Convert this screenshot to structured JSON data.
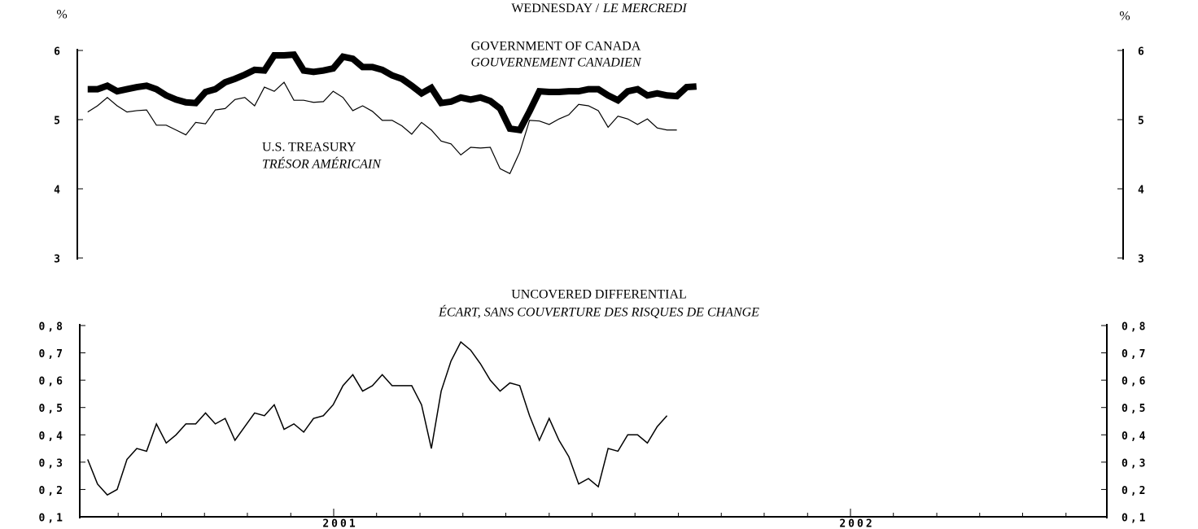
{
  "chart_data": [
    {
      "type": "line",
      "title": "WEDNESDAY /",
      "title_italic": "LE MERCREDI",
      "y_unit": "%",
      "x": [
        2000.524,
        2000.543,
        2000.562,
        2000.581,
        2000.6,
        2000.619,
        2000.638,
        2000.657,
        2000.676,
        2000.695,
        2000.714,
        2000.733,
        2000.752,
        2000.771,
        2000.79,
        2000.809,
        2000.828,
        2000.847,
        2000.866,
        2000.885,
        2000.904,
        2000.923,
        2000.942,
        2000.961,
        2000.98,
        2000.999,
        2001.018,
        2001.037,
        2001.056,
        2001.075,
        2001.094,
        2001.113,
        2001.132,
        2001.151,
        2001.17,
        2001.189,
        2001.208,
        2001.227,
        2001.246,
        2001.265,
        2001.284,
        2001.303,
        2001.322,
        2001.341,
        2001.36,
        2001.379,
        2001.398,
        2001.417,
        2001.436,
        2001.455,
        2001.474,
        2001.493,
        2001.512,
        2001.531,
        2001.55,
        2001.569,
        2001.588,
        2001.607,
        2001.626,
        2001.645,
        2001.664,
        2001.683,
        2001.702
      ],
      "xlim": [
        2000.5,
        2002.5
      ],
      "ylim": [
        3,
        6
      ],
      "yticks": [
        3,
        4,
        5,
        6
      ],
      "series": [
        {
          "name": "GOVERNMENT OF CANADA",
          "name_fr": "GOUVERNEMENT CANADIEN",
          "color": "#000000",
          "values": [
            5.44,
            5.44,
            5.49,
            5.41,
            5.44,
            5.47,
            5.49,
            5.44,
            5.35,
            5.29,
            5.25,
            5.24,
            5.4,
            5.44,
            5.54,
            5.59,
            5.65,
            5.72,
            5.71,
            5.93,
            5.93,
            5.94,
            5.71,
            5.69,
            5.71,
            5.74,
            5.91,
            5.88,
            5.76,
            5.76,
            5.72,
            5.64,
            5.59,
            5.49,
            5.38,
            5.46,
            5.24,
            5.26,
            5.32,
            5.29,
            5.32,
            5.27,
            5.16,
            4.87,
            4.85,
            5.12,
            5.41,
            5.4,
            5.4,
            5.41,
            5.41,
            5.44,
            5.44,
            5.35,
            5.28,
            5.41,
            5.44,
            5.35,
            5.38,
            5.35,
            5.34,
            5.47,
            5.48
          ]
        },
        {
          "name": "U.S. TREASURY",
          "name_fr": "TRÉSOR AMÉRICAIN",
          "color": "#000000",
          "values": [
            5.11,
            5.2,
            5.32,
            5.2,
            5.11,
            5.13,
            5.14,
            4.92,
            4.92,
            4.85,
            4.78,
            4.96,
            4.94,
            5.14,
            5.16,
            5.29,
            5.32,
            5.2,
            5.47,
            5.41,
            5.54,
            5.28,
            5.28,
            5.25,
            5.26,
            5.41,
            5.32,
            5.13,
            5.2,
            5.12,
            4.99,
            4.99,
            4.91,
            4.79,
            4.96,
            4.85,
            4.69,
            4.65,
            4.49,
            4.6,
            4.59,
            4.6,
            4.29,
            4.22,
            4.53,
            4.99,
            4.98,
            4.93,
            5.01,
            5.07,
            5.22,
            5.2,
            5.13,
            4.89,
            5.05,
            5.01,
            4.93,
            5.01,
            4.88,
            4.85,
            4.85,
            null,
            null
          ]
        }
      ]
    },
    {
      "type": "line",
      "title": "UNCOVERED DIFFERENTIAL",
      "subtitle": "ÉCART, SANS COUVERTURE DES RISQUES DE CHANGE",
      "x": [
        2000.524,
        2000.543,
        2000.562,
        2000.581,
        2000.6,
        2000.619,
        2000.638,
        2000.657,
        2000.676,
        2000.695,
        2000.714,
        2000.733,
        2000.752,
        2000.771,
        2000.79,
        2000.809,
        2000.828,
        2000.847,
        2000.866,
        2000.885,
        2000.904,
        2000.923,
        2000.942,
        2000.961,
        2000.98,
        2000.999,
        2001.018,
        2001.037,
        2001.056,
        2001.075,
        2001.094,
        2001.113,
        2001.132,
        2001.151,
        2001.17,
        2001.189,
        2001.208,
        2001.227,
        2001.246,
        2001.265,
        2001.284,
        2001.303,
        2001.322,
        2001.341,
        2001.36,
        2001.379,
        2001.398,
        2001.417,
        2001.436,
        2001.455,
        2001.474,
        2001.493,
        2001.512,
        2001.531,
        2001.55,
        2001.569,
        2001.588,
        2001.607,
        2001.626,
        2001.645
      ],
      "xlim": [
        2000.5,
        2002.5
      ],
      "xticks": [
        2001,
        2002
      ],
      "xminor_ticks": [
        2000.583,
        2000.667,
        2000.75,
        2000.833,
        2000.917,
        2001.083,
        2001.167,
        2001.25,
        2001.333,
        2001.417,
        2001.5,
        2001.583,
        2001.667,
        2001.75,
        2001.833,
        2001.917,
        2002.083,
        2002.167,
        2002.25,
        2002.333,
        2002.417
      ],
      "ylim": [
        0.1,
        0.8
      ],
      "yticks": [
        {
          "value": 0.1,
          "label": "0,1"
        },
        {
          "value": 0.2,
          "label": "0,2"
        },
        {
          "value": 0.3,
          "label": "0,3"
        },
        {
          "value": 0.4,
          "label": "0,4"
        },
        {
          "value": 0.5,
          "label": "0,5"
        },
        {
          "value": 0.6,
          "label": "0,6"
        },
        {
          "value": 0.7,
          "label": "0,7"
        },
        {
          "value": 0.8,
          "label": "0,8"
        }
      ],
      "series": [
        {
          "color": "#000000",
          "values": [
            0.31,
            0.22,
            0.18,
            0.2,
            0.31,
            0.35,
            0.34,
            0.44,
            0.37,
            0.4,
            0.44,
            0.44,
            0.48,
            0.44,
            0.46,
            0.38,
            0.43,
            0.48,
            0.47,
            0.51,
            0.42,
            0.44,
            0.41,
            0.46,
            0.47,
            0.51,
            0.58,
            0.62,
            0.56,
            0.58,
            0.62,
            0.58,
            0.58,
            0.58,
            0.51,
            0.35,
            0.56,
            0.67,
            0.74,
            0.71,
            0.66,
            0.6,
            0.56,
            0.59,
            0.58,
            0.47,
            0.38,
            0.46,
            0.38,
            0.32,
            0.22,
            0.24,
            0.21,
            0.35,
            0.34,
            0.4,
            0.4,
            0.37,
            0.43,
            0.47
          ]
        }
      ]
    }
  ]
}
